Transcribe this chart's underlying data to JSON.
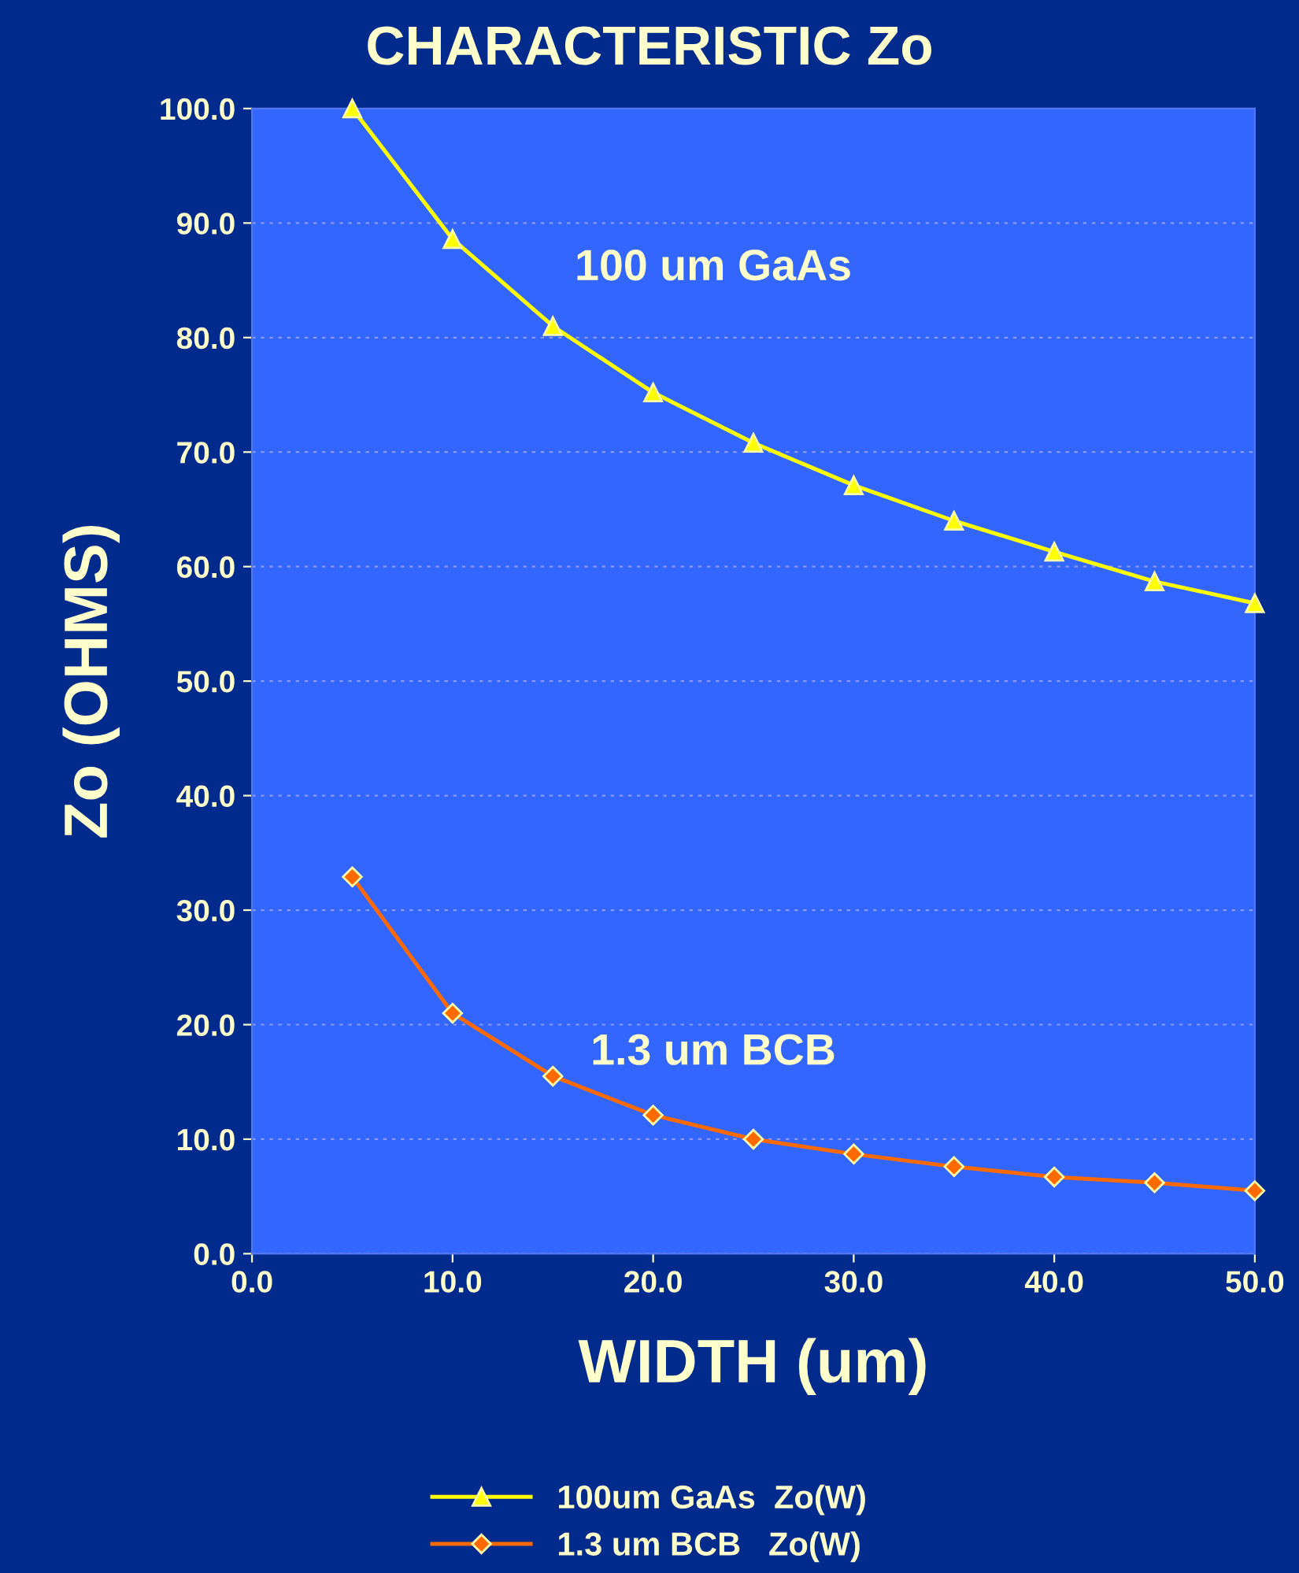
{
  "chart_data": {
    "type": "line",
    "title": "CHARACTERISTIC Zo",
    "xlabel": "WIDTH (um)",
    "ylabel": "Zo (OHMS)",
    "xlim": [
      0,
      50
    ],
    "xticks": [
      {
        "value": 0,
        "label": "0.0"
      },
      {
        "value": 10,
        "label": "10.0"
      },
      {
        "value": 20,
        "label": "20.0"
      },
      {
        "value": 30,
        "label": "30.0"
      },
      {
        "value": 40,
        "label": "40.0"
      },
      {
        "value": 50,
        "label": "50.0"
      }
    ],
    "ylim": [
      0,
      100
    ],
    "yticks": [
      {
        "value": 0,
        "label": "0.0"
      },
      {
        "value": 10,
        "label": "10.0"
      },
      {
        "value": 20,
        "label": "20.0"
      },
      {
        "value": 30,
        "label": "30.0"
      },
      {
        "value": 40,
        "label": "40.0"
      },
      {
        "value": 50,
        "label": "50.0"
      },
      {
        "value": 60,
        "label": "60.0"
      },
      {
        "value": 70,
        "label": "70.0"
      },
      {
        "value": 80,
        "label": "80.0"
      },
      {
        "value": 90,
        "label": "90.0"
      },
      {
        "value": 100,
        "label": "100.0"
      }
    ],
    "grid": "y",
    "legend": "bottom",
    "x": [
      5,
      10,
      15,
      20,
      25,
      30,
      35,
      40,
      45,
      50
    ],
    "series": [
      {
        "name": "100um GaAs  Zo(W)",
        "color": "#ffff00",
        "marker": "triangle",
        "values": [
          100,
          88.6,
          81.0,
          75.2,
          70.8,
          67.1,
          64.0,
          61.3,
          58.7,
          56.8
        ]
      },
      {
        "name": "1.3 um BCB   Zo(W)",
        "color": "#ff6a00",
        "marker": "diamond",
        "values": [
          32.9,
          21.0,
          15.5,
          12.1,
          10.0,
          8.7,
          7.6,
          6.7,
          6.2,
          5.5
        ]
      }
    ],
    "annotations": [
      "100 um GaAs",
      "1.3 um BCB"
    ]
  }
}
